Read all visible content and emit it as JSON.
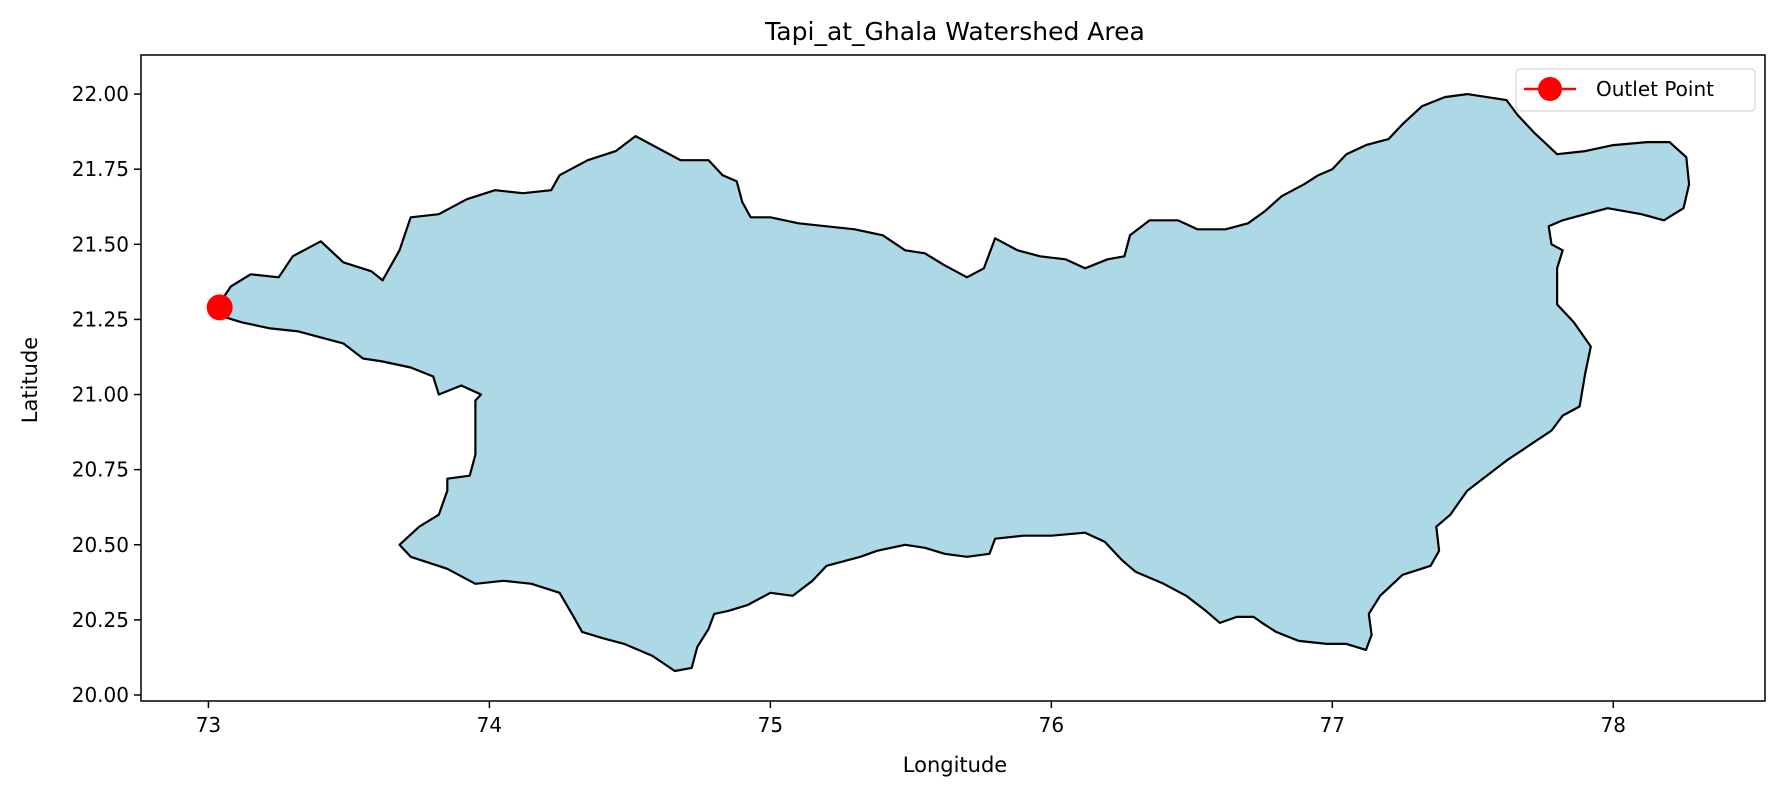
{
  "chart_data": {
    "type": "map",
    "title": "Tapi_at_Ghala Watershed Area",
    "xlabel": "Longitude",
    "ylabel": "Latitude",
    "xlim": [
      72.76,
      78.54
    ],
    "ylim": [
      19.98,
      22.13
    ],
    "x_ticks": [
      73,
      74,
      75,
      76,
      77,
      78
    ],
    "x_tick_labels": [
      "73",
      "74",
      "75",
      "76",
      "77",
      "78"
    ],
    "y_ticks": [
      20.0,
      20.25,
      20.5,
      20.75,
      21.0,
      21.25,
      21.5,
      21.75,
      22.0
    ],
    "y_tick_labels": [
      "20.00",
      "20.25",
      "20.50",
      "20.75",
      "21.00",
      "21.25",
      "21.50",
      "21.75",
      "22.00"
    ],
    "grid": false,
    "legend_position": "top-right",
    "legend": [
      {
        "label": "Outlet Point",
        "color": "#ff0000",
        "marker": "circle"
      }
    ],
    "watershed": {
      "fill_color": "#add8e6",
      "edge_color": "#000000",
      "boundary": [
        [
          73.03,
          21.29
        ],
        [
          73.08,
          21.36
        ],
        [
          73.15,
          21.4
        ],
        [
          73.25,
          21.39
        ],
        [
          73.3,
          21.46
        ],
        [
          73.4,
          21.51
        ],
        [
          73.48,
          21.44
        ],
        [
          73.58,
          21.41
        ],
        [
          73.62,
          21.38
        ],
        [
          73.68,
          21.48
        ],
        [
          73.72,
          21.59
        ],
        [
          73.82,
          21.6
        ],
        [
          73.92,
          21.65
        ],
        [
          74.02,
          21.68
        ],
        [
          74.12,
          21.67
        ],
        [
          74.22,
          21.68
        ],
        [
          74.25,
          21.73
        ],
        [
          74.35,
          21.78
        ],
        [
          74.45,
          21.81
        ],
        [
          74.52,
          21.86
        ],
        [
          74.6,
          21.82
        ],
        [
          74.68,
          21.78
        ],
        [
          74.78,
          21.78
        ],
        [
          74.83,
          21.73
        ],
        [
          74.88,
          21.71
        ],
        [
          74.9,
          21.64
        ],
        [
          74.93,
          21.59
        ],
        [
          75.0,
          21.59
        ],
        [
          75.1,
          21.57
        ],
        [
          75.2,
          21.56
        ],
        [
          75.3,
          21.55
        ],
        [
          75.4,
          21.53
        ],
        [
          75.48,
          21.48
        ],
        [
          75.55,
          21.47
        ],
        [
          75.62,
          21.43
        ],
        [
          75.7,
          21.39
        ],
        [
          75.76,
          21.42
        ],
        [
          75.8,
          21.52
        ],
        [
          75.88,
          21.48
        ],
        [
          75.96,
          21.46
        ],
        [
          76.05,
          21.45
        ],
        [
          76.12,
          21.42
        ],
        [
          76.2,
          21.45
        ],
        [
          76.26,
          21.46
        ],
        [
          76.28,
          21.53
        ],
        [
          76.35,
          21.58
        ],
        [
          76.45,
          21.58
        ],
        [
          76.52,
          21.55
        ],
        [
          76.62,
          21.55
        ],
        [
          76.7,
          21.57
        ],
        [
          76.76,
          21.61
        ],
        [
          76.82,
          21.66
        ],
        [
          76.9,
          21.7
        ],
        [
          76.95,
          21.73
        ],
        [
          77.0,
          21.75
        ],
        [
          77.05,
          21.8
        ],
        [
          77.12,
          21.83
        ],
        [
          77.2,
          21.85
        ],
        [
          77.25,
          21.9
        ],
        [
          77.32,
          21.96
        ],
        [
          77.4,
          21.99
        ],
        [
          77.48,
          22.0
        ],
        [
          77.55,
          21.99
        ],
        [
          77.62,
          21.98
        ],
        [
          77.66,
          21.93
        ],
        [
          77.72,
          21.87
        ],
        [
          77.8,
          21.8
        ],
        [
          77.9,
          21.81
        ],
        [
          78.0,
          21.83
        ],
        [
          78.12,
          21.84
        ],
        [
          78.2,
          21.84
        ],
        [
          78.26,
          21.79
        ],
        [
          78.27,
          21.7
        ],
        [
          78.25,
          21.62
        ],
        [
          78.18,
          21.58
        ],
        [
          78.1,
          21.6
        ],
        [
          77.98,
          21.62
        ],
        [
          77.9,
          21.6
        ],
        [
          77.82,
          21.58
        ],
        [
          77.77,
          21.56
        ],
        [
          77.78,
          21.5
        ],
        [
          77.82,
          21.48
        ],
        [
          77.8,
          21.42
        ],
        [
          77.8,
          21.3
        ],
        [
          77.86,
          21.24
        ],
        [
          77.92,
          21.16
        ],
        [
          77.9,
          21.07
        ],
        [
          77.88,
          20.96
        ],
        [
          77.82,
          20.93
        ],
        [
          77.78,
          20.88
        ],
        [
          77.7,
          20.83
        ],
        [
          77.62,
          20.78
        ],
        [
          77.55,
          20.73
        ],
        [
          77.48,
          20.68
        ],
        [
          77.42,
          20.6
        ],
        [
          77.37,
          20.56
        ],
        [
          77.38,
          20.48
        ],
        [
          77.35,
          20.43
        ],
        [
          77.25,
          20.4
        ],
        [
          77.17,
          20.33
        ],
        [
          77.13,
          20.27
        ],
        [
          77.14,
          20.2
        ],
        [
          77.12,
          20.15
        ],
        [
          77.05,
          20.17
        ],
        [
          76.98,
          20.17
        ],
        [
          76.88,
          20.18
        ],
        [
          76.8,
          20.21
        ],
        [
          76.75,
          20.24
        ],
        [
          76.72,
          20.26
        ],
        [
          76.66,
          20.26
        ],
        [
          76.6,
          20.24
        ],
        [
          76.55,
          20.28
        ],
        [
          76.48,
          20.33
        ],
        [
          76.4,
          20.37
        ],
        [
          76.3,
          20.41
        ],
        [
          76.25,
          20.45
        ],
        [
          76.19,
          20.51
        ],
        [
          76.12,
          20.54
        ],
        [
          76.0,
          20.53
        ],
        [
          75.9,
          20.53
        ],
        [
          75.8,
          20.52
        ],
        [
          75.78,
          20.47
        ],
        [
          75.7,
          20.46
        ],
        [
          75.62,
          20.47
        ],
        [
          75.55,
          20.49
        ],
        [
          75.48,
          20.5
        ],
        [
          75.38,
          20.48
        ],
        [
          75.32,
          20.46
        ],
        [
          75.2,
          20.43
        ],
        [
          75.15,
          20.38
        ],
        [
          75.08,
          20.33
        ],
        [
          75.0,
          20.34
        ],
        [
          74.92,
          20.3
        ],
        [
          74.85,
          20.28
        ],
        [
          74.8,
          20.27
        ],
        [
          74.78,
          20.22
        ],
        [
          74.74,
          20.16
        ],
        [
          74.72,
          20.09
        ],
        [
          74.66,
          20.08
        ],
        [
          74.58,
          20.13
        ],
        [
          74.48,
          20.17
        ],
        [
          74.4,
          20.19
        ],
        [
          74.33,
          20.21
        ],
        [
          74.3,
          20.26
        ],
        [
          74.25,
          20.34
        ],
        [
          74.15,
          20.37
        ],
        [
          74.05,
          20.38
        ],
        [
          73.95,
          20.37
        ],
        [
          73.85,
          20.42
        ],
        [
          73.72,
          20.46
        ],
        [
          73.68,
          20.5
        ],
        [
          73.75,
          20.56
        ],
        [
          73.82,
          20.6
        ],
        [
          73.85,
          20.68
        ],
        [
          73.85,
          20.72
        ],
        [
          73.93,
          20.73
        ],
        [
          73.95,
          20.8
        ],
        [
          73.95,
          20.9
        ],
        [
          73.95,
          20.98
        ],
        [
          73.97,
          21.0
        ],
        [
          73.9,
          21.03
        ],
        [
          73.82,
          21.0
        ],
        [
          73.8,
          21.06
        ],
        [
          73.72,
          21.09
        ],
        [
          73.62,
          21.11
        ],
        [
          73.55,
          21.12
        ],
        [
          73.48,
          21.17
        ],
        [
          73.4,
          21.19
        ],
        [
          73.32,
          21.21
        ],
        [
          73.22,
          21.22
        ],
        [
          73.12,
          21.24
        ],
        [
          73.05,
          21.26
        ]
      ]
    },
    "outlet_point": {
      "lon": 73.04,
      "lat": 21.29,
      "label": "Outlet Point",
      "color": "#ff0000"
    }
  }
}
